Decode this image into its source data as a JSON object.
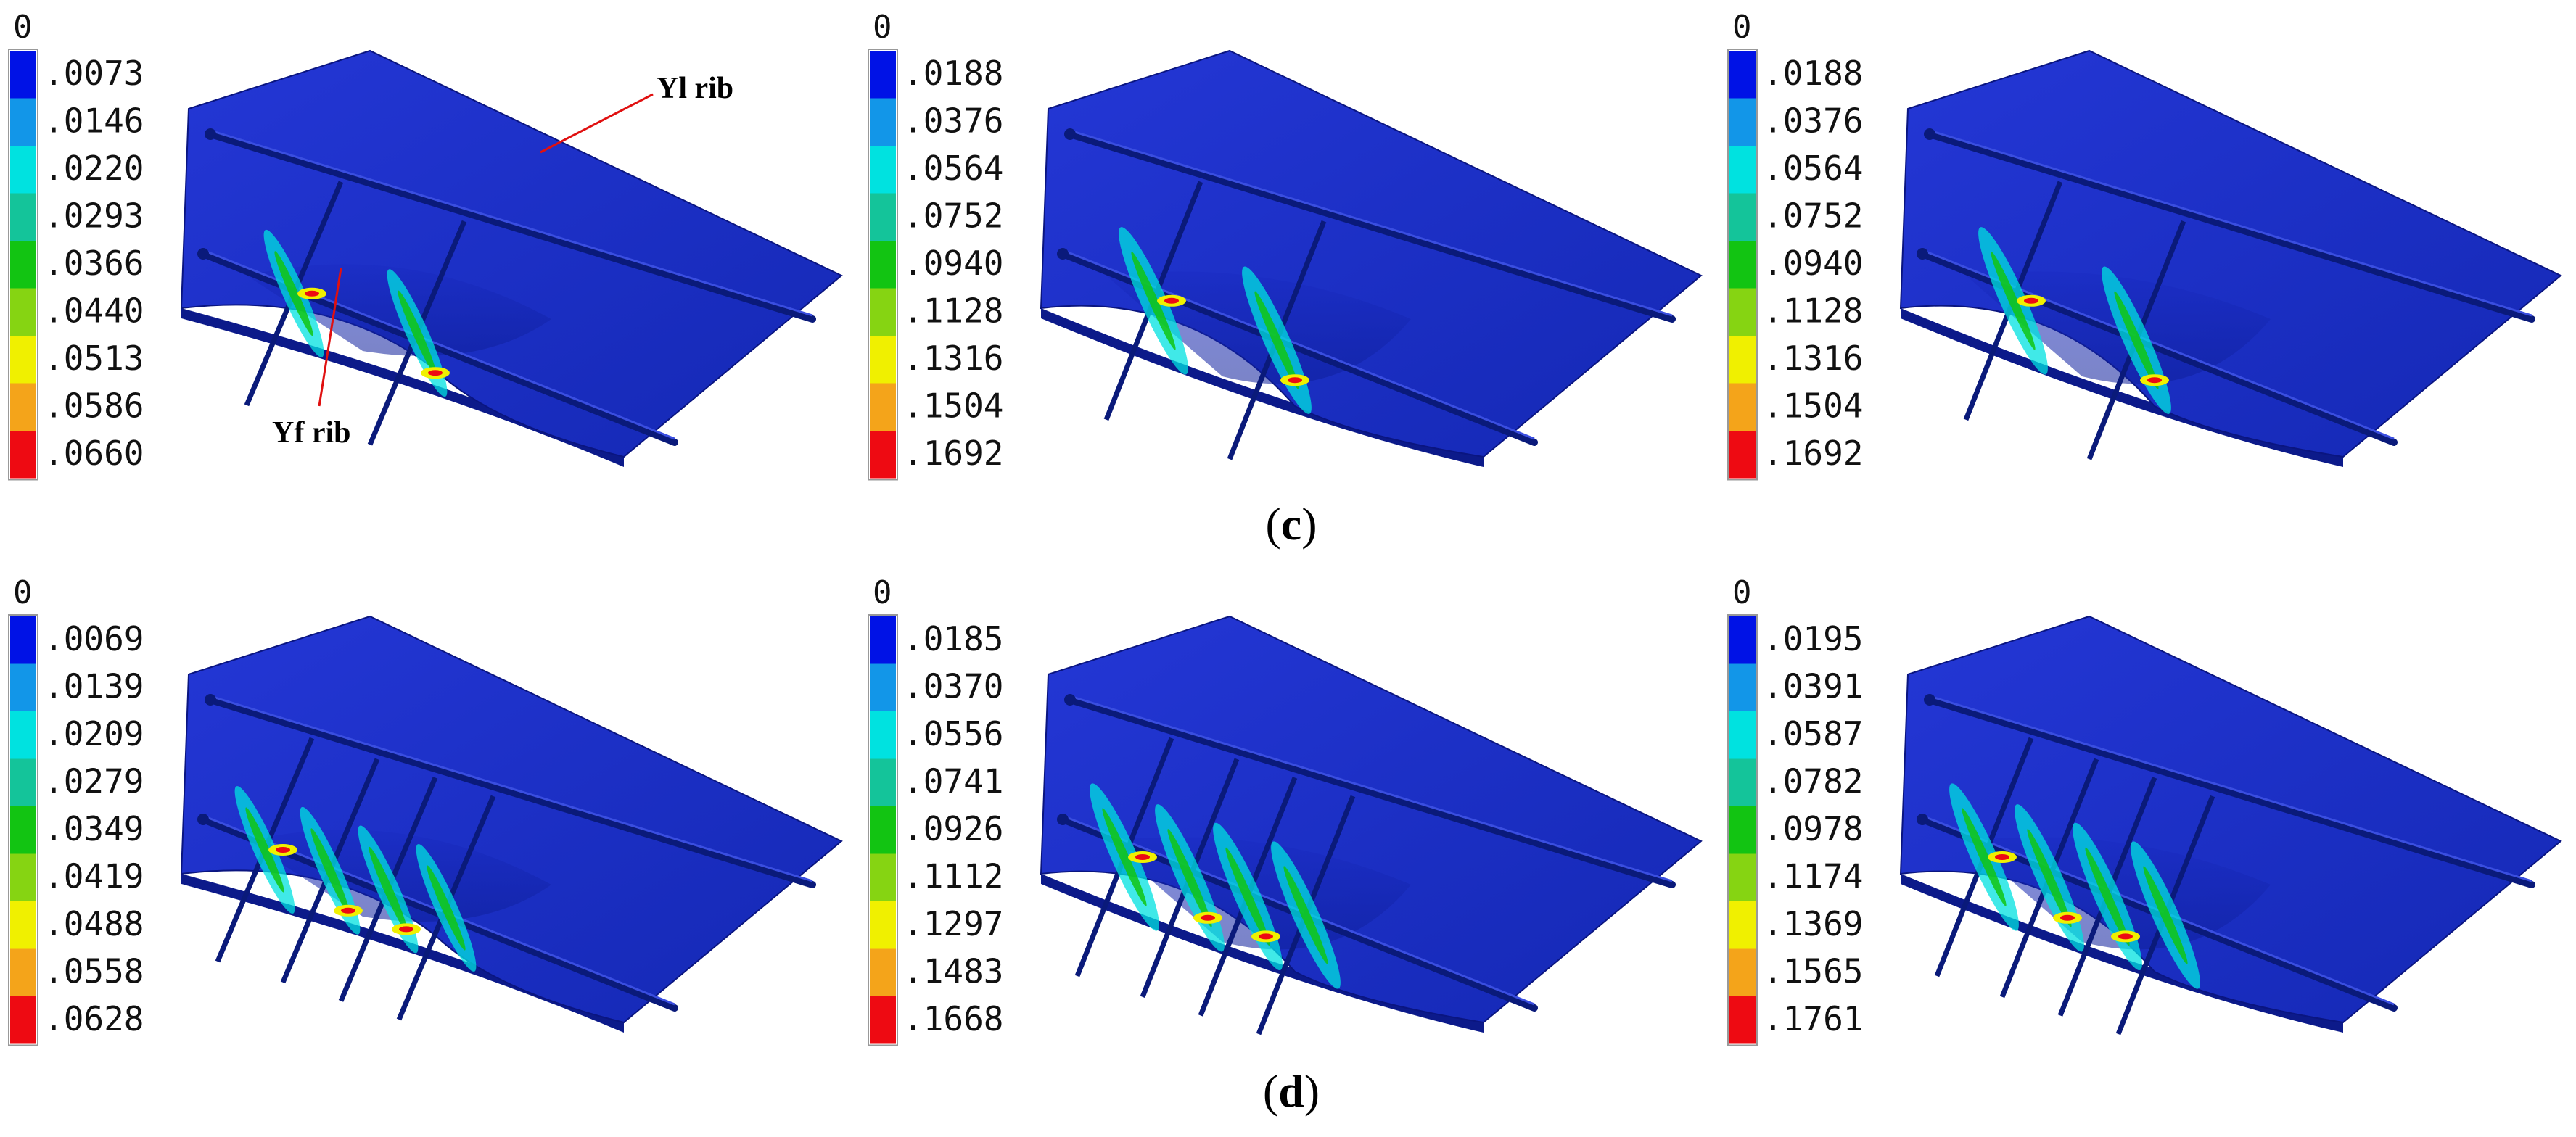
{
  "colors": {
    "scale": [
      "#0012e6",
      "#1296e8",
      "#00e2e0",
      "#14c49a",
      "#12c412",
      "#86d412",
      "#f0f000",
      "#f4a41a",
      "#ee0a12"
    ],
    "plate": "#1c2fc8",
    "rib_text": "#000000",
    "leader": "#e01010"
  },
  "annotations": {
    "yl_rib": "Yl rib",
    "yf_rib": "Yf rib"
  },
  "row_labels": [
    {
      "open": "(",
      "letter": "c",
      "close": ")"
    },
    {
      "open": "(",
      "letter": "d",
      "close": ")"
    }
  ],
  "panels": [
    {
      "id": "c1",
      "ribs": 2,
      "legend": {
        "top": "0",
        "values": [
          ".0073",
          ".0146",
          ".0220",
          ".0293",
          ".0366",
          ".0440",
          ".0513",
          ".0586",
          ".0660"
        ]
      }
    },
    {
      "id": "c2",
      "ribs": 2,
      "legend": {
        "top": "0",
        "values": [
          ".0188",
          ".0376",
          ".0564",
          ".0752",
          ".0940",
          ".1128",
          ".1316",
          ".1504",
          ".1692"
        ]
      }
    },
    {
      "id": "c3",
      "ribs": 2,
      "legend": {
        "top": "0",
        "values": [
          ".0188",
          ".0376",
          ".0564",
          ".0752",
          ".0940",
          ".1128",
          ".1316",
          ".1504",
          ".1692"
        ]
      }
    },
    {
      "id": "d1",
      "ribs": 4,
      "legend": {
        "top": "0",
        "values": [
          ".0069",
          ".0139",
          ".0209",
          ".0279",
          ".0349",
          ".0419",
          ".0488",
          ".0558",
          ".0628"
        ]
      }
    },
    {
      "id": "d2",
      "ribs": 4,
      "legend": {
        "top": "0",
        "values": [
          ".0185",
          ".0370",
          ".0556",
          ".0741",
          ".0926",
          ".1112",
          ".1297",
          ".1483",
          ".1668"
        ]
      }
    },
    {
      "id": "d3",
      "ribs": 4,
      "legend": {
        "top": "0",
        "values": [
          ".0195",
          ".0391",
          ".0587",
          ".0782",
          ".0978",
          ".1174",
          ".1369",
          ".1565",
          ".1761"
        ]
      }
    }
  ]
}
